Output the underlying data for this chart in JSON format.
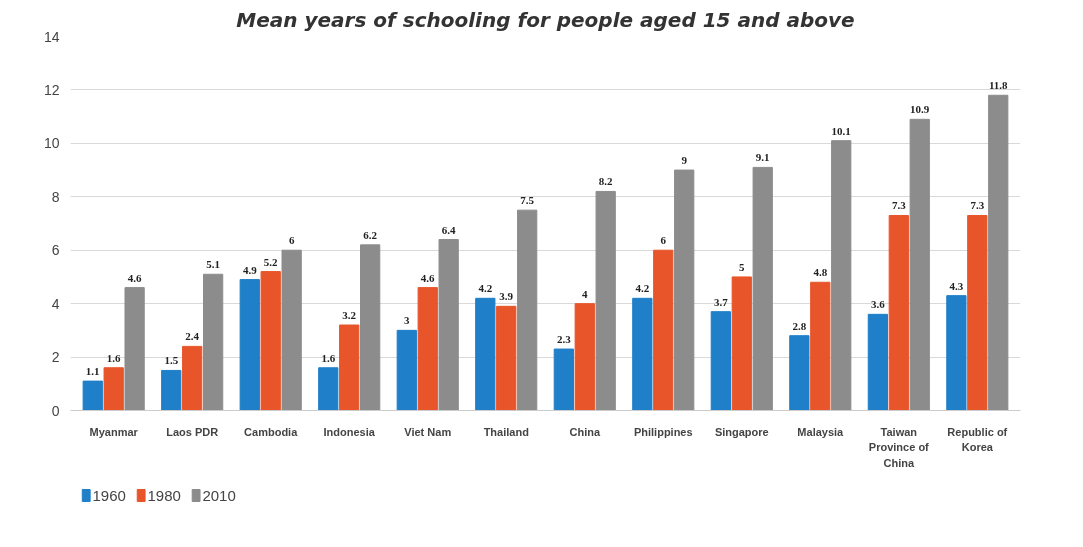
{
  "chart_data": {
    "type": "bar",
    "title": "Mean years of schooling for people aged 15 and above",
    "categories": [
      "Myanmar",
      "Laos PDR",
      "Cambodia",
      "Indonesia",
      "Viet Nam",
      "Thailand",
      "China",
      "Philippines",
      "Singapore",
      "Malaysia",
      "Taiwan Province of China",
      "Republic of Korea"
    ],
    "series": [
      {
        "name": "1960",
        "color": "#1f7fc8",
        "values": [
          1.1,
          1.5,
          4.9,
          1.6,
          3,
          4.2,
          2.3,
          4.2,
          3.7,
          2.8,
          3.6,
          4.3
        ]
      },
      {
        "name": "1980",
        "color": "#e8552a",
        "values": [
          1.6,
          2.4,
          5.2,
          3.2,
          4.6,
          3.9,
          4,
          6,
          5,
          4.8,
          7.3,
          7.3
        ]
      },
      {
        "name": "2010",
        "color": "#8c8c8c",
        "values": [
          4.6,
          5.1,
          6,
          6.2,
          6.4,
          7.5,
          8.2,
          9,
          9.1,
          10.1,
          10.9,
          11.8
        ]
      }
    ],
    "ylim": [
      0,
      14
    ],
    "yticks": [
      0,
      2,
      4,
      6,
      8,
      10,
      12,
      14
    ],
    "grid": "y",
    "legend": "bottom left",
    "data_labels": true
  }
}
